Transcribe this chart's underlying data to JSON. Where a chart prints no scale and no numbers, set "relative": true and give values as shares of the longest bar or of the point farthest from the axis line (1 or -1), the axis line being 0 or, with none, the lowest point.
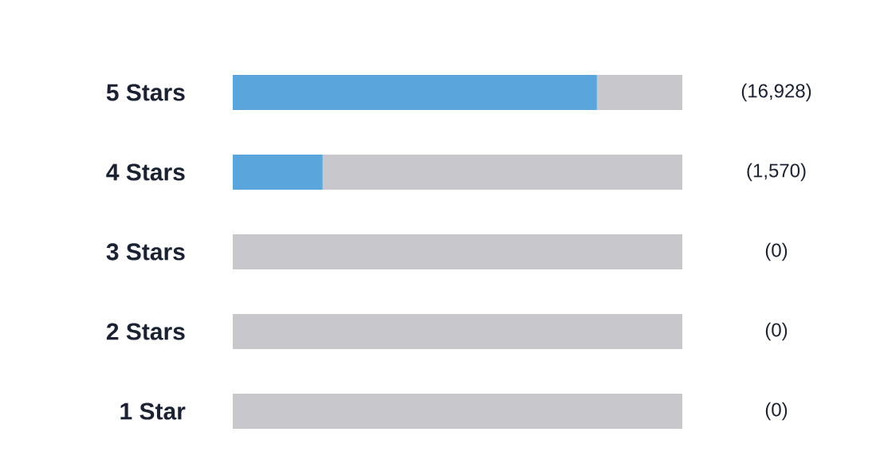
{
  "chart_data": {
    "type": "bar",
    "orientation": "horizontal",
    "stacked": true,
    "relative": true,
    "tick_labels": "y",
    "categories": [
      "5 Stars",
      "4 Stars",
      "3 Stars",
      "2 Stars",
      "1 Star"
    ],
    "series": [
      {
        "color": "#5aa6dc",
        "values": [
          0.81,
          0.2,
          0,
          0,
          0
        ]
      },
      {
        "color": "#c8c7cc",
        "values": [
          0.19,
          0.8,
          1,
          1,
          1
        ]
      }
    ],
    "annotations": [
      "(16,928)",
      "(1,570)",
      "(0)",
      "(0)",
      "(0)"
    ]
  }
}
